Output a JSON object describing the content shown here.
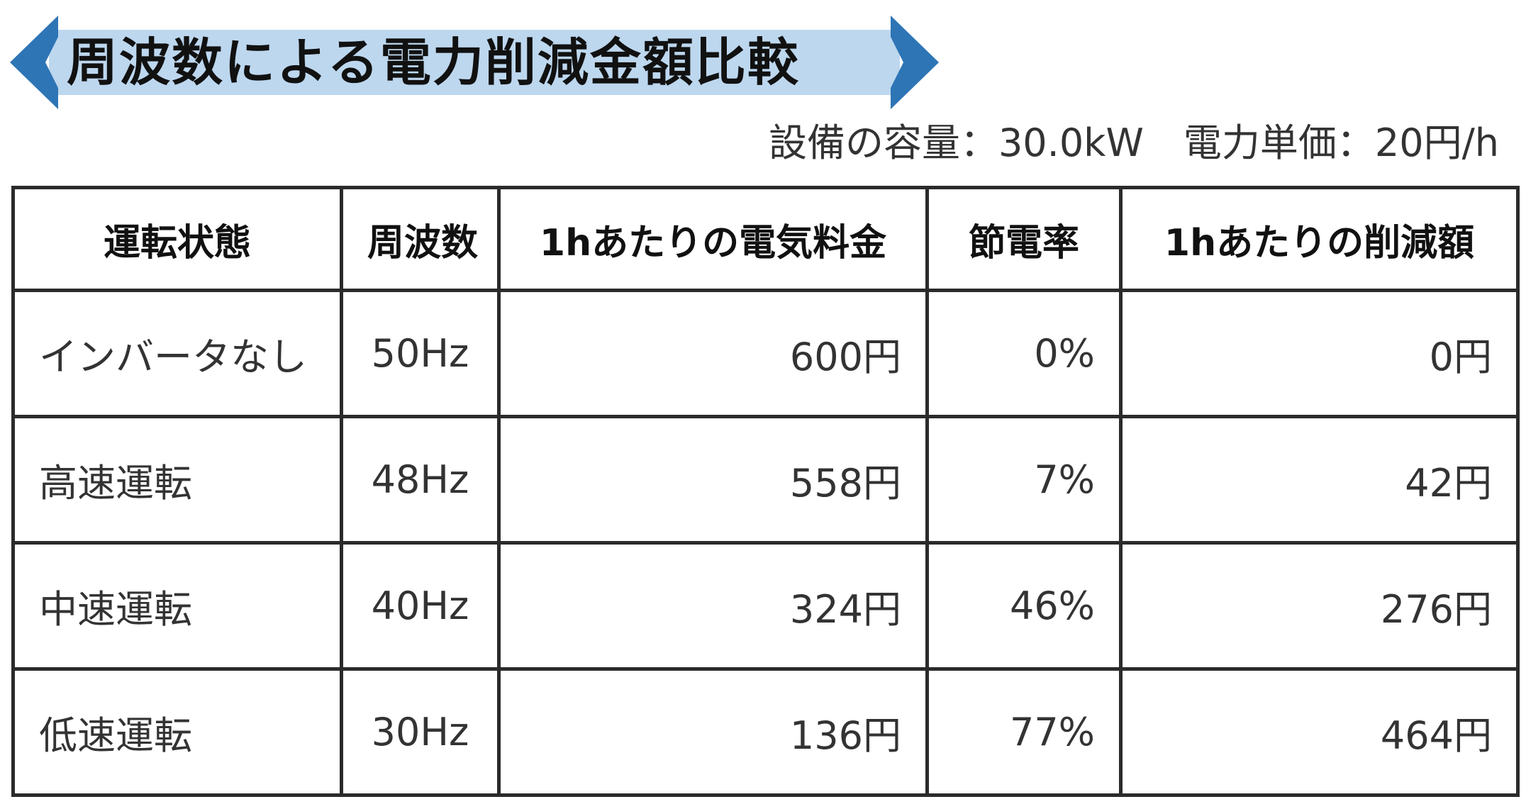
{
  "title": "周波数による電力削減金額比較",
  "banner_colors": {
    "fill": "#bdd7ee",
    "arrow": "#2e75b6"
  },
  "spec": {
    "capacity": "設備の容量：30.0kW",
    "unit_price": "電力単価：20円/h"
  },
  "table": {
    "headers": [
      "運転状態",
      "周波数",
      "1hあたりの電気料金",
      "節電率",
      "1hあたりの削減額"
    ],
    "rows": [
      {
        "state": "インバータなし",
        "freq": "50Hz",
        "cost": "600円",
        "rate": "0%",
        "saving": "0円"
      },
      {
        "state": "高速運転",
        "freq": "48Hz",
        "cost": "558円",
        "rate": "7%",
        "saving": "42円"
      },
      {
        "state": "中速運転",
        "freq": "40Hz",
        "cost": "324円",
        "rate": "46%",
        "saving": "276円"
      },
      {
        "state": "低速運転",
        "freq": "30Hz",
        "cost": "136円",
        "rate": "77%",
        "saving": "464円"
      }
    ]
  }
}
